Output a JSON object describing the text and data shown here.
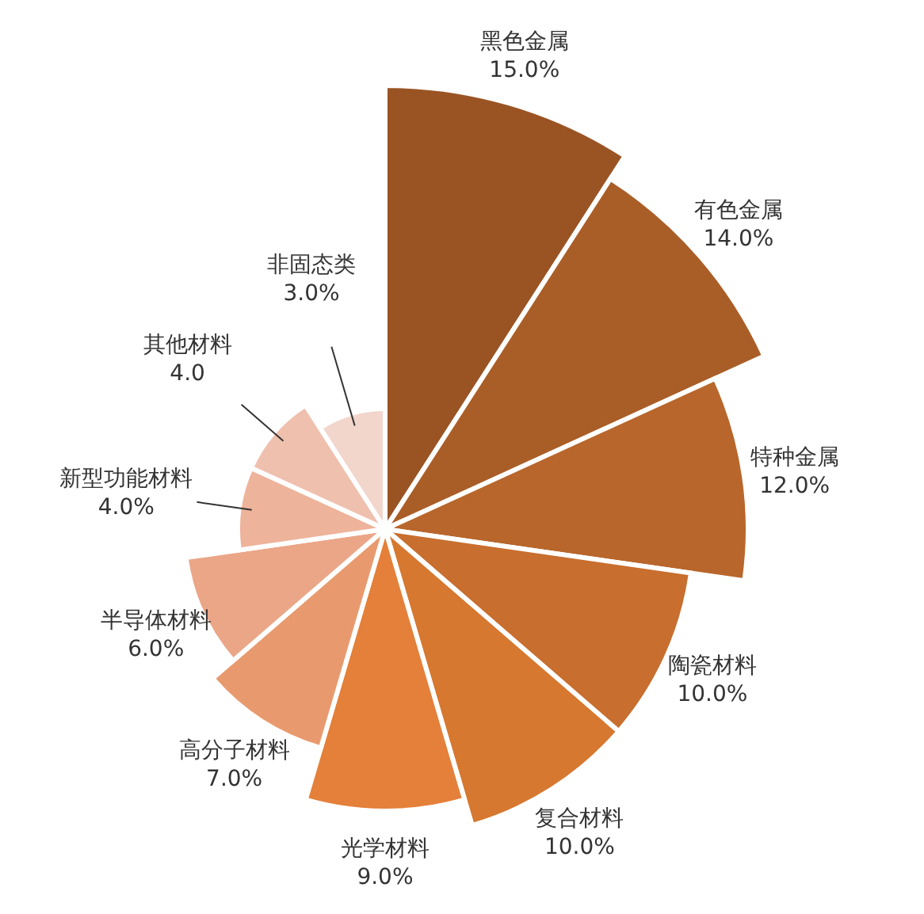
{
  "chart_data": {
    "type": "other",
    "categories": [
      "黑色金属",
      "有色金属",
      "特种金属",
      "陶瓷材料",
      "复合材料",
      "光学材料",
      "高分子材料",
      "半导体材料",
      "新型功能材料",
      "其他材料",
      "非固态类"
    ],
    "values": [
      15,
      14,
      12,
      10,
      10,
      9,
      7,
      6,
      4,
      4,
      3
    ],
    "value_labels": [
      "15.0%",
      "14.0%",
      "12.0%",
      "10.0%",
      "10.0%",
      "9.0%",
      "7.0%",
      "6.0%",
      "4.0%",
      "4.0",
      "3.0%"
    ],
    "colors": [
      "#9a5424",
      "#aa5e27",
      "#b8662b",
      "#c86e2e",
      "#d6782f",
      "#e4803a",
      "#e89a6e",
      "#eba687",
      "#eeb39b",
      "#efc0ae",
      "#f2d5cb"
    ]
  }
}
